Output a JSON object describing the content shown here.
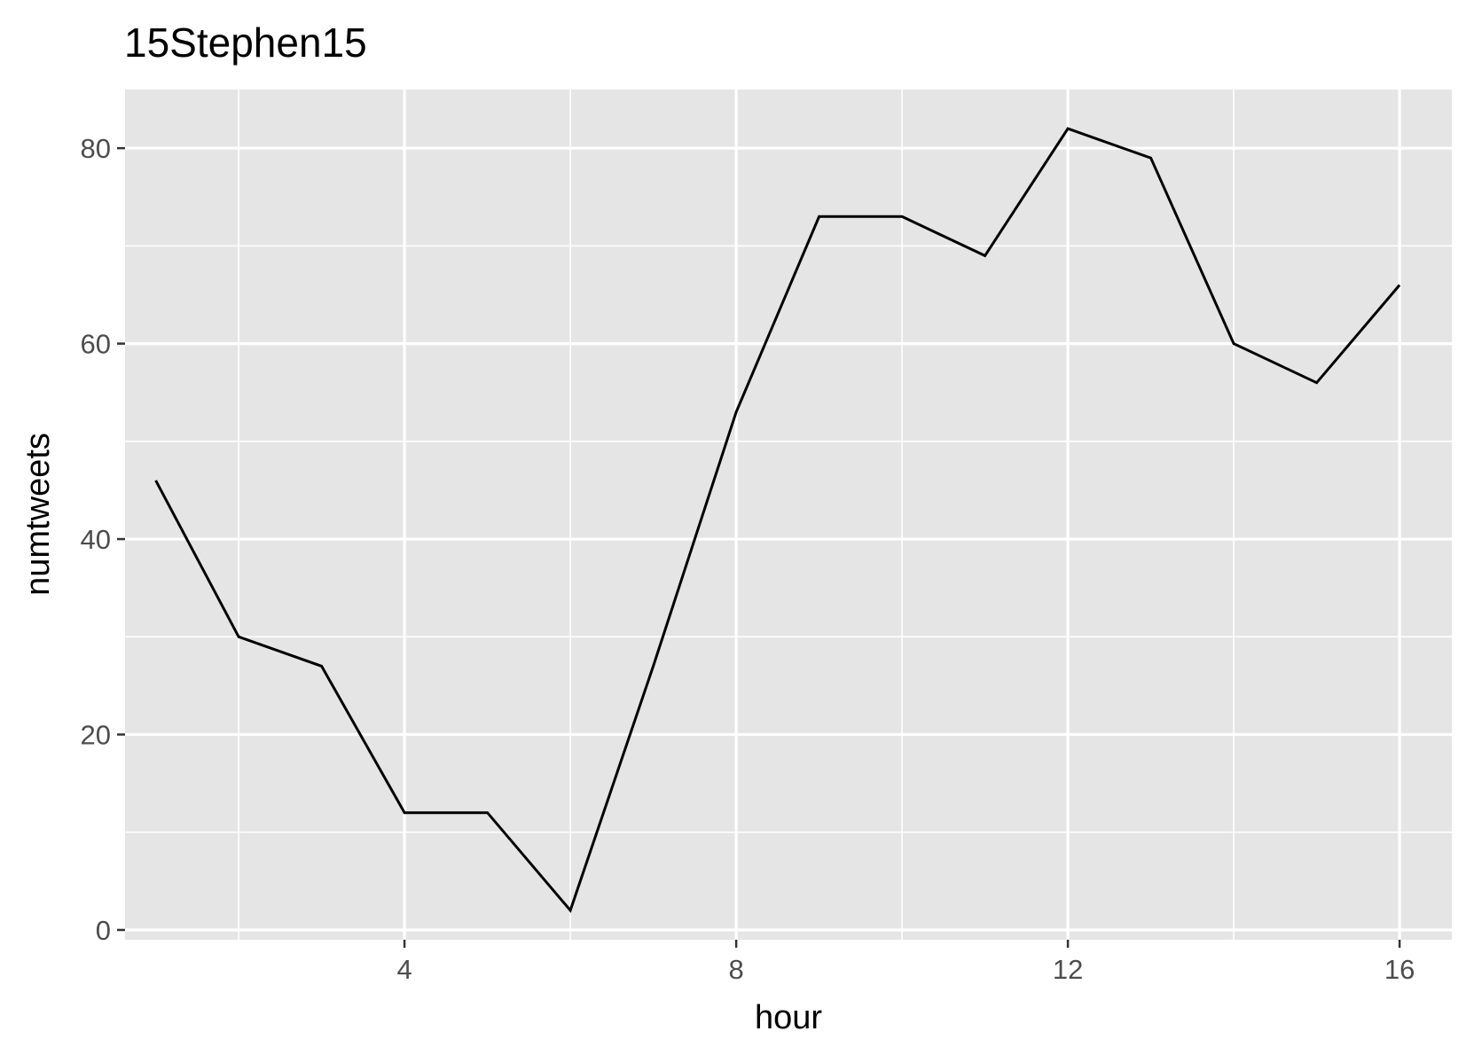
{
  "chart_data": {
    "type": "line",
    "title": "15Stephen15",
    "xlabel": "hour",
    "ylabel": "numtweets",
    "xlim": [
      0.63,
      16.63
    ],
    "ylim": [
      -1.0,
      86.0
    ],
    "x_ticks": [
      4,
      8,
      12,
      16
    ],
    "y_ticks": [
      0,
      20,
      40,
      60,
      80
    ],
    "x_tick_labels": [
      "4",
      "8",
      "12",
      "16"
    ],
    "y_tick_labels": [
      "0",
      "20",
      "40",
      "60",
      "80"
    ],
    "grid": true,
    "legend": "none",
    "series": [
      {
        "x": [
          1,
          2,
          3,
          4,
          5,
          6,
          7,
          8,
          9,
          10,
          11,
          12,
          13,
          14,
          15,
          16
        ],
        "y": [
          46,
          30,
          27,
          12,
          12,
          2,
          27,
          53,
          73,
          73,
          69,
          82,
          79,
          60,
          56,
          66
        ]
      }
    ],
    "colors": {
      "panel_background": "#e5e5e5",
      "grid_line": "#ffffff",
      "line": "#000000",
      "tick_text": "#4d4d4d",
      "axis_text": "#000000"
    }
  }
}
